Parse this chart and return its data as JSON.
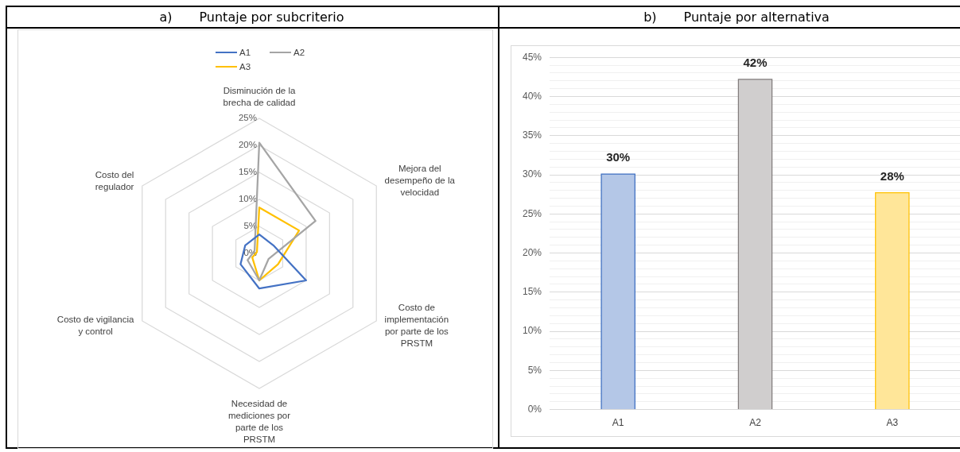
{
  "chart_data": [
    {
      "type": "radar",
      "title": "a) Puntaje por subcriterio",
      "categories": [
        "Disminución de la brecha de calidad",
        "Mejora del desempeño de la velocidad",
        "Costo de implementación por parte de los PRSTM",
        "Necesidad de mediciones por parte de los PRSTM",
        "Costo de vigilancia y control",
        "Costo del regulador"
      ],
      "series": [
        {
          "name": "A1",
          "color": "#4472c4",
          "values": [
            3.5,
            3,
            10,
            6.5,
            4,
            3
          ]
        },
        {
          "name": "A2",
          "color": "#a5a5a5",
          "values": [
            20.5,
            12,
            2,
            5,
            2.5,
            1
          ]
        },
        {
          "name": "A3",
          "color": "#ffc000",
          "values": [
            8.5,
            8.5,
            4,
            5,
            1.5,
            0.5
          ]
        }
      ],
      "ylim": [
        0,
        25
      ],
      "yticks": [
        {
          "value": 0,
          "label": "0%"
        },
        {
          "value": 5,
          "label": "5%"
        },
        {
          "value": 10,
          "label": "10%"
        },
        {
          "value": 15,
          "label": "15%"
        },
        {
          "value": 20,
          "label": "20%"
        },
        {
          "value": 25,
          "label": "25%"
        }
      ],
      "grid": true,
      "legend": "top",
      "marker": "none",
      "line_style": "solid"
    },
    {
      "type": "bar",
      "title": "b) Puntaje por alternativa",
      "categories": [
        "A1",
        "A2",
        "A3"
      ],
      "values": [
        30.1,
        42.2,
        27.7
      ],
      "colors": [
        "#b4c7e7",
        "#d0cece",
        "#ffe699"
      ],
      "value_labels": [
        "30%",
        "42%",
        "28%"
      ],
      "ylim": [
        0,
        45
      ],
      "yticks": [
        {
          "value": 0,
          "label": "0%"
        },
        {
          "value": 1,
          "label": null
        },
        {
          "value": 2,
          "label": null
        },
        {
          "value": 3,
          "label": null
        },
        {
          "value": 4,
          "label": null
        },
        {
          "value": 5,
          "label": "5%"
        },
        {
          "value": 6,
          "label": null
        },
        {
          "value": 7,
          "label": null
        },
        {
          "value": 8,
          "label": null
        },
        {
          "value": 9,
          "label": null
        },
        {
          "value": 10,
          "label": "10%"
        },
        {
          "value": 11,
          "label": null
        },
        {
          "value": 12,
          "label": null
        },
        {
          "value": 13,
          "label": null
        },
        {
          "value": 14,
          "label": null
        },
        {
          "value": 15,
          "label": "15%"
        },
        {
          "value": 16,
          "label": null
        },
        {
          "value": 17,
          "label": null
        },
        {
          "value": 18,
          "label": null
        },
        {
          "value": 19,
          "label": null
        },
        {
          "value": 20,
          "label": "20%"
        },
        {
          "value": 21,
          "label": null
        },
        {
          "value": 22,
          "label": null
        },
        {
          "value": 23,
          "label": null
        },
        {
          "value": 24,
          "label": null
        },
        {
          "value": 25,
          "label": "25%"
        },
        {
          "value": 26,
          "label": null
        },
        {
          "value": 27,
          "label": null
        },
        {
          "value": 28,
          "label": null
        },
        {
          "value": 29,
          "label": null
        },
        {
          "value": 30,
          "label": "30%"
        },
        {
          "value": 31,
          "label": null
        },
        {
          "value": 32,
          "label": null
        },
        {
          "value": 33,
          "label": null
        },
        {
          "value": 34,
          "label": null
        },
        {
          "value": 35,
          "label": "35%"
        },
        {
          "value": 36,
          "label": null
        },
        {
          "value": 37,
          "label": null
        },
        {
          "value": 38,
          "label": null
        },
        {
          "value": 39,
          "label": null
        },
        {
          "value": 40,
          "label": "40%"
        },
        {
          "value": 41,
          "label": null
        },
        {
          "value": 42,
          "label": null
        },
        {
          "value": 43,
          "label": null
        },
        {
          "value": 44,
          "label": null
        },
        {
          "value": 45,
          "label": "45%"
        }
      ],
      "grid": "y",
      "legend": false
    }
  ]
}
